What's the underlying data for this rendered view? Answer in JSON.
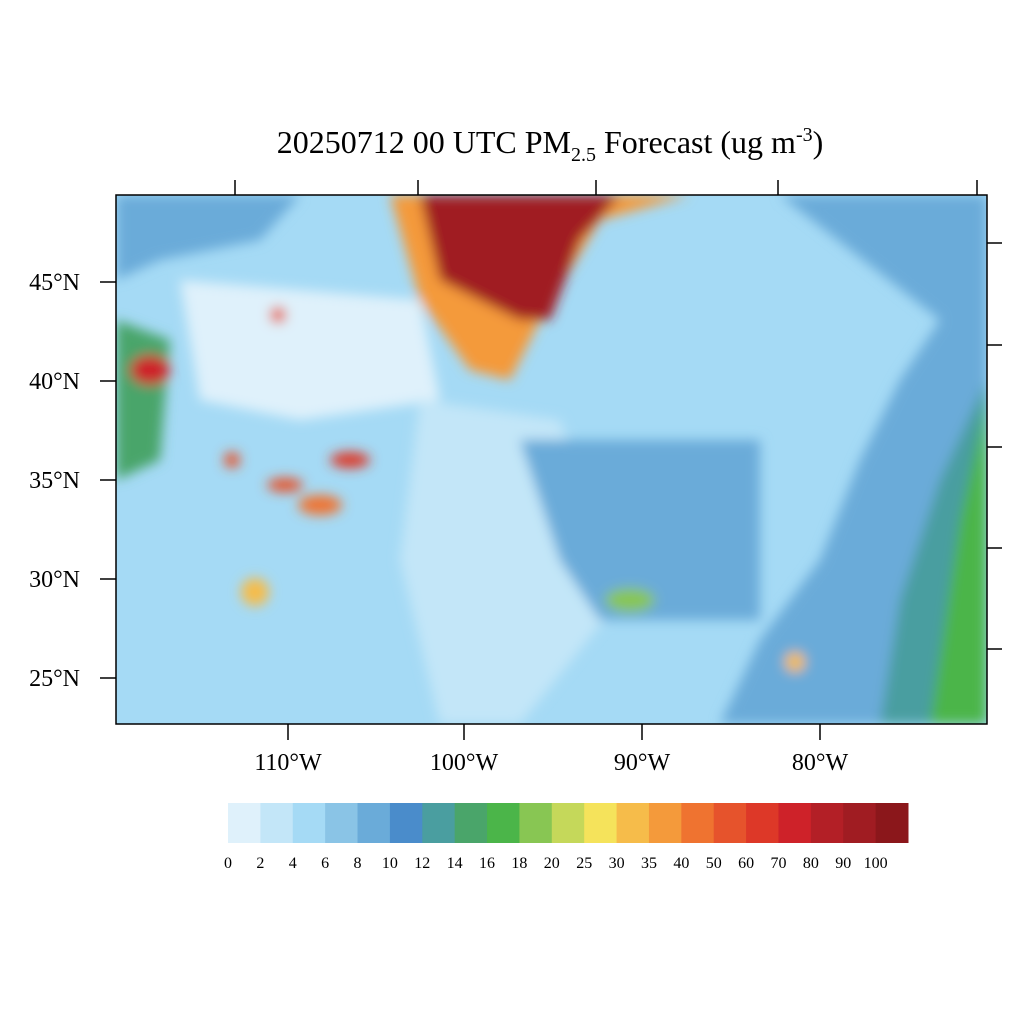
{
  "title": {
    "main": "20250712 00 UTC PM",
    "subscript": "2.5",
    "middle": " Forecast (ug m",
    "superscript": "-3",
    "end": ")"
  },
  "lat_labels": [
    "45°N",
    "40°N",
    "35°N",
    "30°N",
    "25°N"
  ],
  "lon_labels": [
    "110°W",
    "100°W",
    "90°W",
    "80°W"
  ],
  "colorbar": {
    "levels": [
      0,
      2,
      4,
      6,
      8,
      10,
      12,
      14,
      16,
      18,
      20,
      25,
      30,
      35,
      40,
      50,
      60,
      70,
      80,
      90,
      100
    ],
    "colors": [
      "#dff1fb",
      "#c3e6f8",
      "#a5daf5",
      "#8ac4e6",
      "#6aabd9",
      "#4a8ccb",
      "#4a9ea0",
      "#4aa56a",
      "#4bb549",
      "#88c653",
      "#c5d85a",
      "#f5e35b",
      "#f6bc4a",
      "#f49a3b",
      "#ef7330",
      "#e6532c",
      "#dd3828",
      "#ce2229",
      "#b31f26",
      "#a01c22",
      "#8b171b"
    ]
  }
}
